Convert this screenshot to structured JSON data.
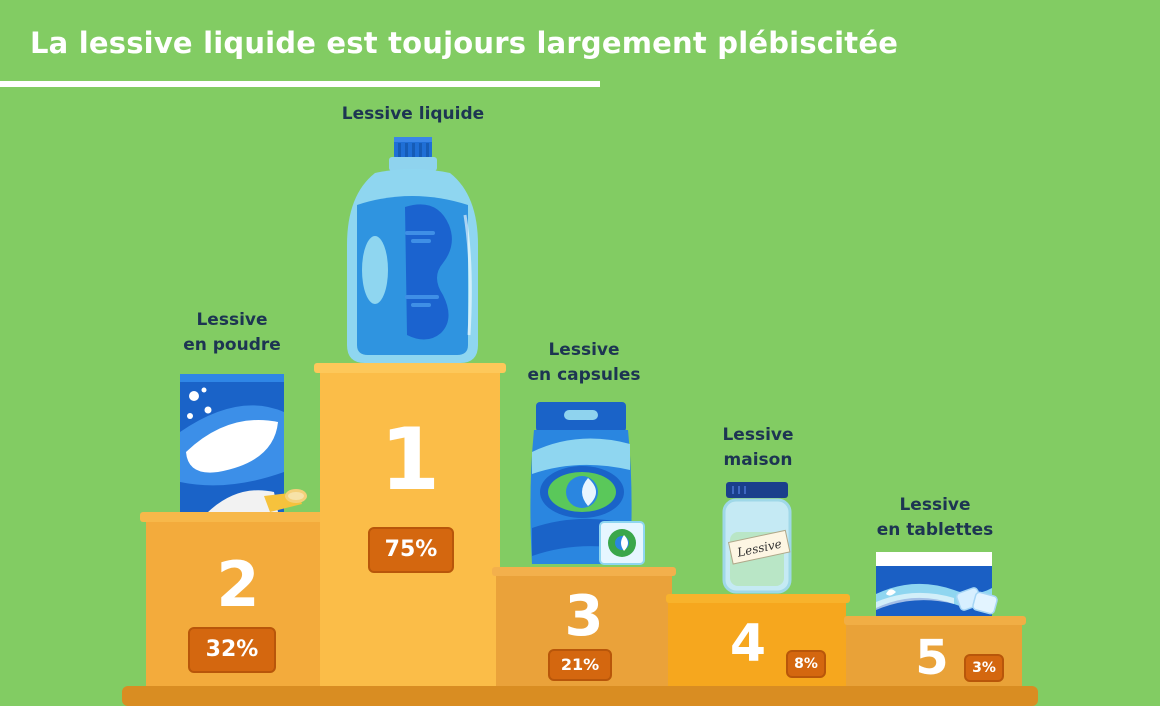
{
  "title": "La lessive liquide est toujours largement plébiscitée",
  "products": [
    {
      "rank": "1",
      "name_line1": "Lessive liquide",
      "name_line2": "",
      "percent": "75%"
    },
    {
      "rank": "2",
      "name_line1": "Lessive",
      "name_line2": "en poudre",
      "percent": "32%"
    },
    {
      "rank": "3",
      "name_line1": "Lessive",
      "name_line2": "en capsules",
      "percent": "21%"
    },
    {
      "rank": "4",
      "name_line1": "Lessive",
      "name_line2": "maison",
      "percent": "8%"
    },
    {
      "rank": "5",
      "name_line1": "Lessive",
      "name_line2": "en tablettes",
      "percent": "3%"
    }
  ],
  "jar_tag": "Lessive",
  "colors": {
    "background": "#82cc63",
    "podium_first": "#fbbd48",
    "podium_second": "#f3ab3c",
    "podium_third": "#eaa23a",
    "podium_fourth": "#f6a71e",
    "podium_fifth": "#e9a238",
    "badge": "#d4670f",
    "label_text": "#1d3552"
  },
  "icons": [
    "liquid-bottle-icon",
    "powder-box-icon",
    "capsule-bag-icon",
    "jar-icon",
    "tablet-box-icon"
  ]
}
